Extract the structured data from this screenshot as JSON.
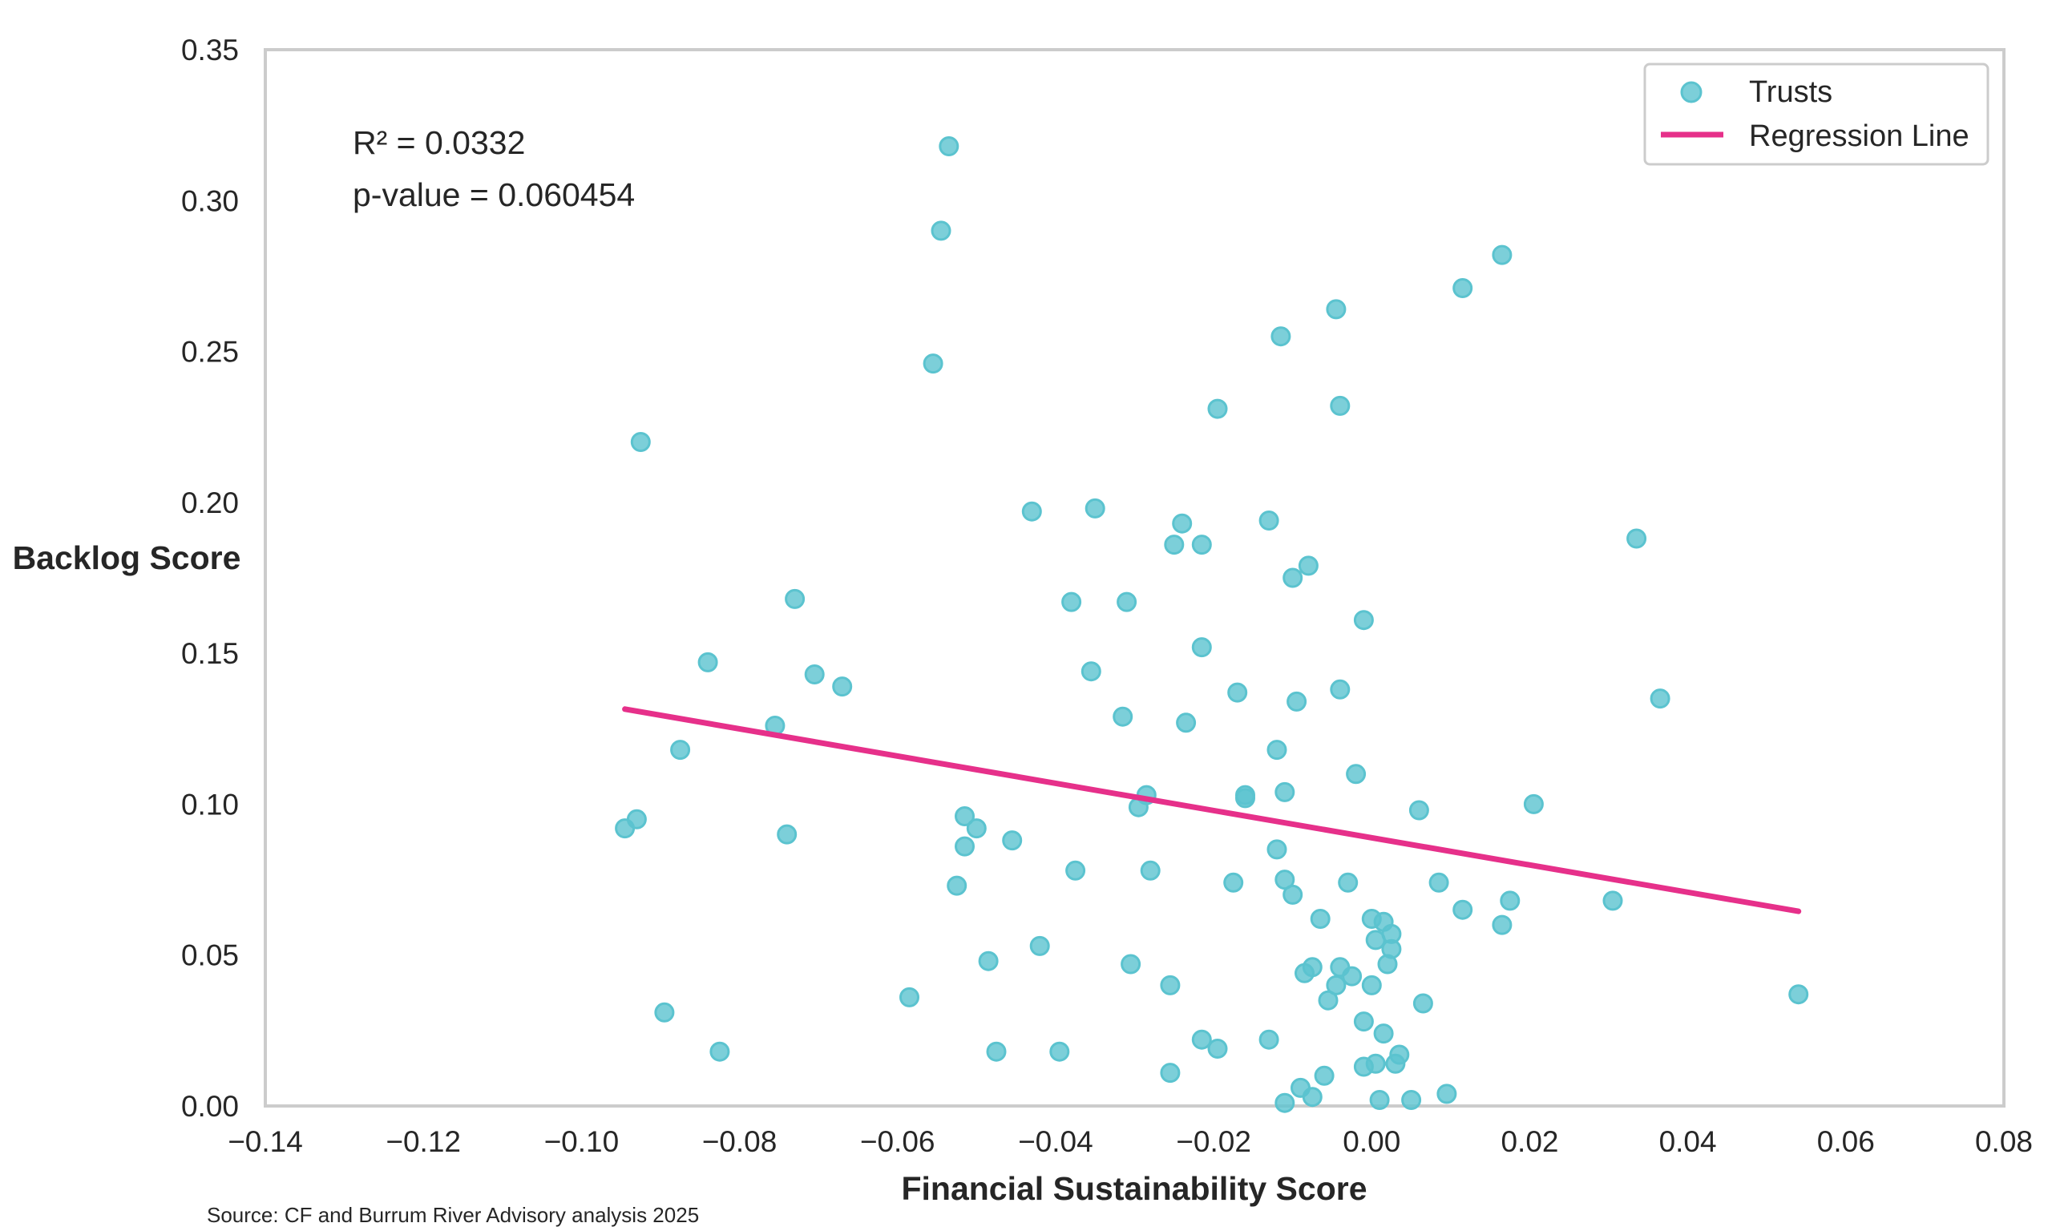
{
  "chart_data": {
    "type": "scatter",
    "xlabel": "Financial Sustainability Score",
    "ylabel": "Backlog Score",
    "xlim": [
      -0.14,
      0.08
    ],
    "ylim": [
      0.0,
      0.35
    ],
    "x_ticks": [
      -0.14,
      -0.12,
      -0.1,
      -0.08,
      -0.06,
      -0.04,
      -0.02,
      0.0,
      0.02,
      0.04,
      0.06,
      0.08
    ],
    "x_tick_labels": [
      "−0.14",
      "−0.12",
      "−0.10",
      "−0.08",
      "−0.06",
      "−0.04",
      "−0.02",
      "0.00",
      "0.02",
      "0.04",
      "0.06",
      "0.08"
    ],
    "y_ticks": [
      0.0,
      0.05,
      0.1,
      0.15,
      0.2,
      0.25,
      0.3,
      0.35
    ],
    "y_tick_labels": [
      "0.00",
      "0.05",
      "0.10",
      "0.15",
      "0.20",
      "0.25",
      "0.30",
      "0.35"
    ],
    "grid": false,
    "legend_position": "top-right",
    "annotations": [
      "R² = 0.0332",
      "p-value = 0.060454"
    ],
    "source": "Source: CF and Burrum River Advisory analysis 2025",
    "colors": {
      "points": "#5bc3cf",
      "regression": "#e6308a",
      "frame": "#cccccc"
    },
    "series": [
      {
        "name": "Trusts",
        "type": "scatter",
        "points": [
          [
            -0.0535,
            0.318
          ],
          [
            -0.0545,
            0.29
          ],
          [
            -0.0555,
            0.246
          ],
          [
            -0.0925,
            0.22
          ],
          [
            0.0165,
            0.282
          ],
          [
            0.0115,
            0.271
          ],
          [
            -0.0045,
            0.264
          ],
          [
            -0.0115,
            0.255
          ],
          [
            -0.0195,
            0.231
          ],
          [
            -0.004,
            0.232
          ],
          [
            -0.043,
            0.197
          ],
          [
            -0.035,
            0.198
          ],
          [
            -0.024,
            0.193
          ],
          [
            -0.013,
            0.194
          ],
          [
            -0.025,
            0.186
          ],
          [
            -0.0215,
            0.186
          ],
          [
            0.0335,
            0.188
          ],
          [
            -0.008,
            0.179
          ],
          [
            -0.01,
            0.175
          ],
          [
            -0.073,
            0.168
          ],
          [
            -0.038,
            0.167
          ],
          [
            -0.031,
            0.167
          ],
          [
            -0.001,
            0.161
          ],
          [
            -0.084,
            0.147
          ],
          [
            -0.0215,
            0.152
          ],
          [
            -0.0705,
            0.143
          ],
          [
            -0.067,
            0.139
          ],
          [
            -0.0355,
            0.144
          ],
          [
            -0.017,
            0.137
          ],
          [
            -0.004,
            0.138
          ],
          [
            -0.0095,
            0.134
          ],
          [
            0.0365,
            0.135
          ],
          [
            -0.0315,
            0.129
          ],
          [
            -0.0235,
            0.127
          ],
          [
            -0.0755,
            0.126
          ],
          [
            -0.0875,
            0.118
          ],
          [
            -0.012,
            0.118
          ],
          [
            -0.002,
            0.11
          ],
          [
            -0.0285,
            0.103
          ],
          [
            -0.016,
            0.103
          ],
          [
            -0.016,
            0.102
          ],
          [
            -0.011,
            0.104
          ],
          [
            -0.0295,
            0.099
          ],
          [
            0.006,
            0.098
          ],
          [
            0.0205,
            0.1
          ],
          [
            -0.0945,
            0.092
          ],
          [
            -0.093,
            0.095
          ],
          [
            -0.074,
            0.09
          ],
          [
            -0.0515,
            0.096
          ],
          [
            -0.05,
            0.092
          ],
          [
            -0.0515,
            0.086
          ],
          [
            -0.0455,
            0.088
          ],
          [
            -0.012,
            0.085
          ],
          [
            -0.0525,
            0.073
          ],
          [
            -0.0375,
            0.078
          ],
          [
            -0.028,
            0.078
          ],
          [
            -0.0175,
            0.074
          ],
          [
            -0.011,
            0.075
          ],
          [
            -0.01,
            0.07
          ],
          [
            -0.003,
            0.074
          ],
          [
            0.0085,
            0.074
          ],
          [
            -0.0065,
            0.062
          ],
          [
            0.0,
            0.062
          ],
          [
            0.0015,
            0.061
          ],
          [
            0.0115,
            0.065
          ],
          [
            0.0175,
            0.068
          ],
          [
            0.0305,
            0.068
          ],
          [
            0.0165,
            0.06
          ],
          [
            0.0005,
            0.055
          ],
          [
            0.0025,
            0.057
          ],
          [
            0.0025,
            0.052
          ],
          [
            -0.042,
            0.053
          ],
          [
            -0.0485,
            0.048
          ],
          [
            -0.0305,
            0.047
          ],
          [
            -0.0075,
            0.046
          ],
          [
            -0.0085,
            0.044
          ],
          [
            -0.004,
            0.046
          ],
          [
            -0.0025,
            0.043
          ],
          [
            0.002,
            0.047
          ],
          [
            -0.0045,
            0.04
          ],
          [
            0.0,
            0.04
          ],
          [
            -0.0255,
            0.04
          ],
          [
            -0.0585,
            0.036
          ],
          [
            -0.0055,
            0.035
          ],
          [
            0.0065,
            0.034
          ],
          [
            0.054,
            0.037
          ],
          [
            -0.0895,
            0.031
          ],
          [
            -0.001,
            0.028
          ],
          [
            0.0015,
            0.024
          ],
          [
            -0.0215,
            0.022
          ],
          [
            -0.013,
            0.022
          ],
          [
            -0.0825,
            0.018
          ],
          [
            -0.0475,
            0.018
          ],
          [
            -0.0395,
            0.018
          ],
          [
            -0.0195,
            0.019
          ],
          [
            0.0035,
            0.017
          ],
          [
            0.0005,
            0.014
          ],
          [
            -0.001,
            0.013
          ],
          [
            0.003,
            0.014
          ],
          [
            -0.0255,
            0.011
          ],
          [
            -0.006,
            0.01
          ],
          [
            -0.009,
            0.006
          ],
          [
            -0.0075,
            0.003
          ],
          [
            -0.011,
            0.001
          ],
          [
            0.001,
            0.002
          ],
          [
            0.005,
            0.002
          ],
          [
            0.0095,
            0.004
          ]
        ]
      },
      {
        "name": "Regression Line",
        "type": "line",
        "points": [
          [
            -0.0945,
            0.1315
          ],
          [
            0.054,
            0.0645
          ]
        ]
      }
    ]
  }
}
